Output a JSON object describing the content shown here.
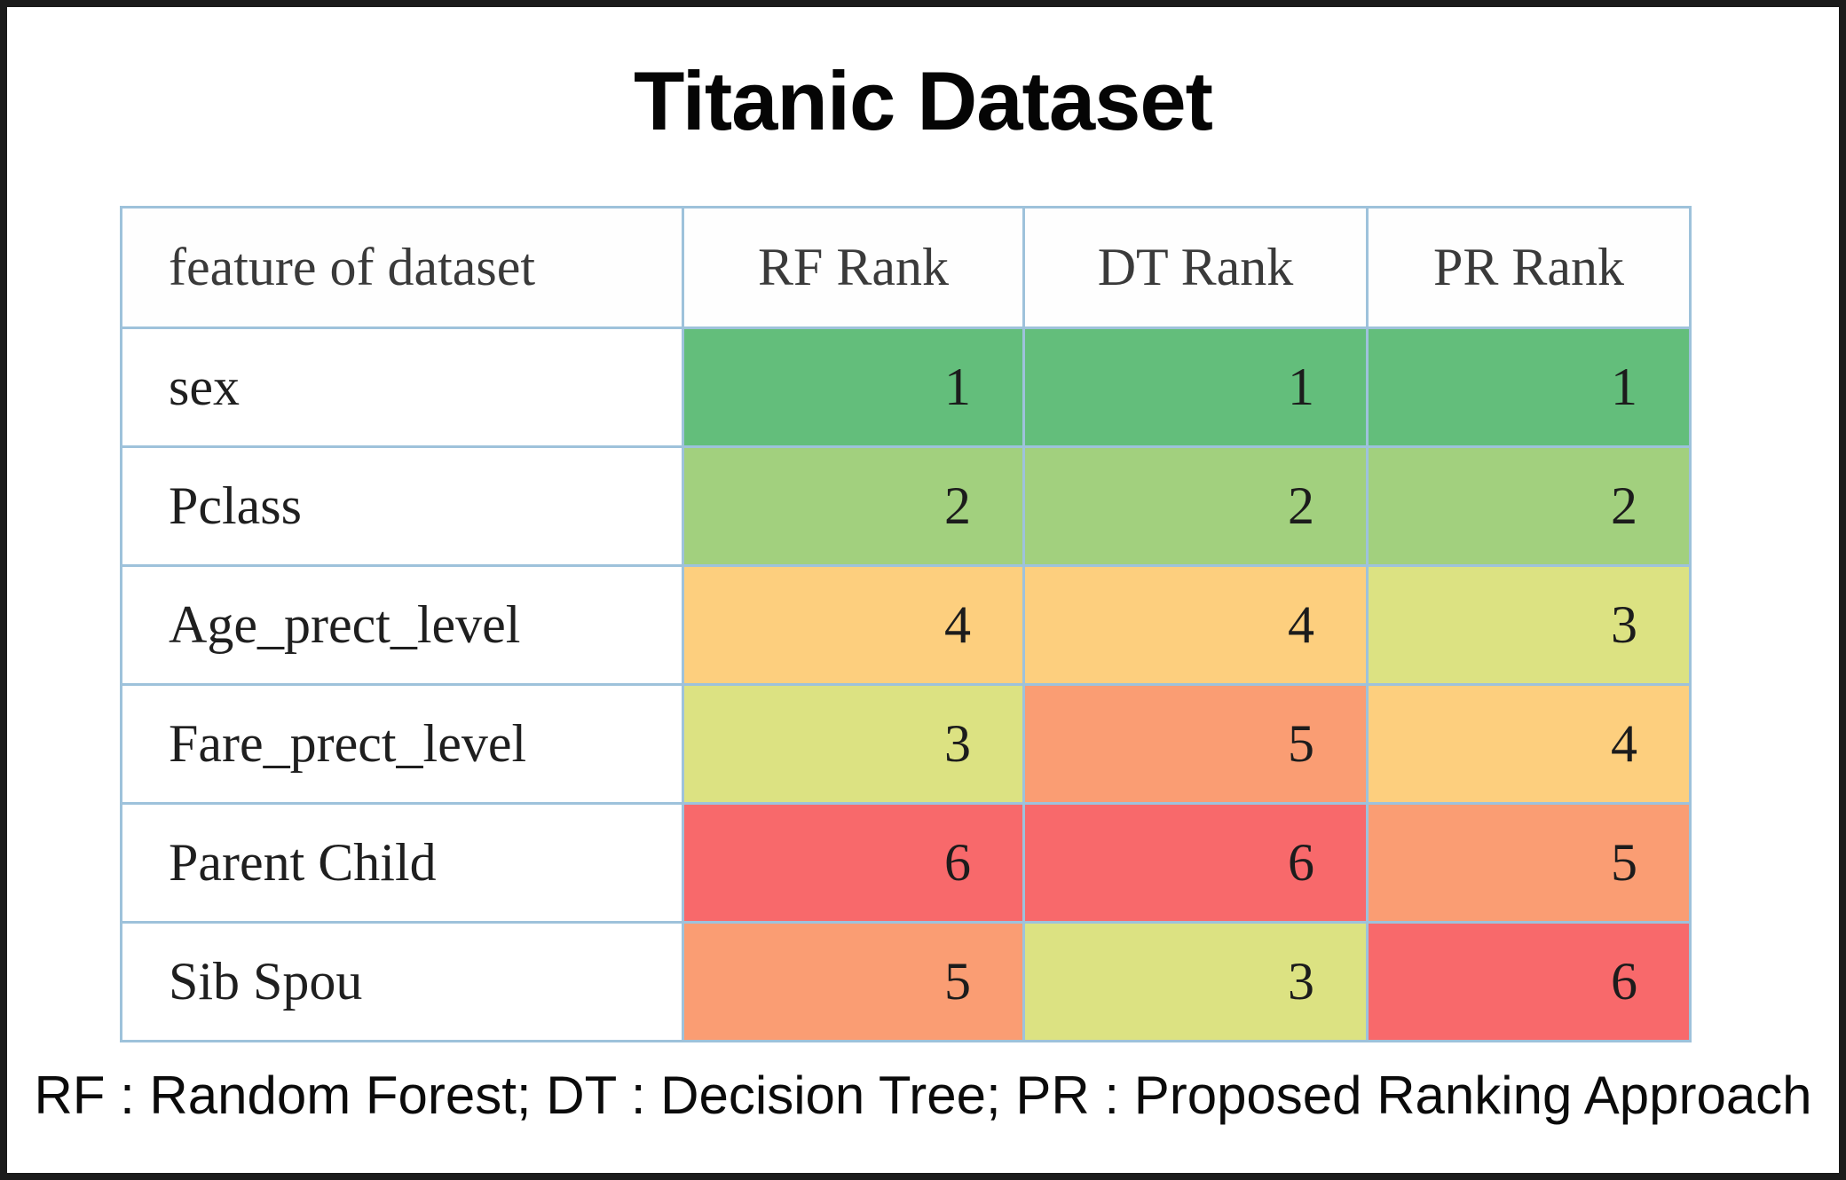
{
  "title": "Titanic Dataset",
  "footer_note": "RF : Random Forest; DT : Decision Tree; PR : Proposed Ranking Approach",
  "table": {
    "headers": [
      "feature of dataset",
      "RF Rank",
      "DT Rank",
      "PR Rank"
    ],
    "rows": [
      {
        "feature": "sex",
        "ranks": [
          1,
          1,
          1
        ]
      },
      {
        "feature": "Pclass",
        "ranks": [
          2,
          2,
          2
        ]
      },
      {
        "feature": "Age_prect_level",
        "ranks": [
          4,
          4,
          3
        ]
      },
      {
        "feature": "Fare_prect_level",
        "ranks": [
          3,
          5,
          4
        ]
      },
      {
        "feature": "Parent Child",
        "ranks": [
          6,
          6,
          5
        ]
      },
      {
        "feature": "Sib Spou",
        "ranks": [
          5,
          3,
          6
        ]
      }
    ]
  },
  "rank_colors": {
    "1": "#63BE7B",
    "2": "#A2D07E",
    "3": "#DCE282",
    "4": "#FDCF7E",
    "5": "#FA9D73",
    "6": "#F8696B"
  },
  "grid_color": "#9EC2DB",
  "chart_data": {
    "type": "heatmap",
    "title": "Titanic Dataset",
    "row_labels": [
      "sex",
      "Pclass",
      "Age_prect_level",
      "Fare_prect_level",
      "Parent Child",
      "Sib Spou"
    ],
    "columns": [
      "RF Rank",
      "DT Rank",
      "PR Rank"
    ],
    "values": [
      [
        1,
        1,
        1
      ],
      [
        2,
        2,
        2
      ],
      [
        4,
        4,
        3
      ],
      [
        3,
        5,
        4
      ],
      [
        6,
        6,
        5
      ],
      [
        5,
        3,
        6
      ]
    ],
    "value_range": [
      1,
      6
    ],
    "color_scale": {
      "low": "#63BE7B",
      "mid": "#DCE282",
      "high": "#F8696B",
      "meaning": "1 = best rank (green) to 6 = worst rank (red)"
    },
    "annotation": "RF : Random Forest; DT : Decision Tree; PR : Proposed Ranking Approach"
  }
}
